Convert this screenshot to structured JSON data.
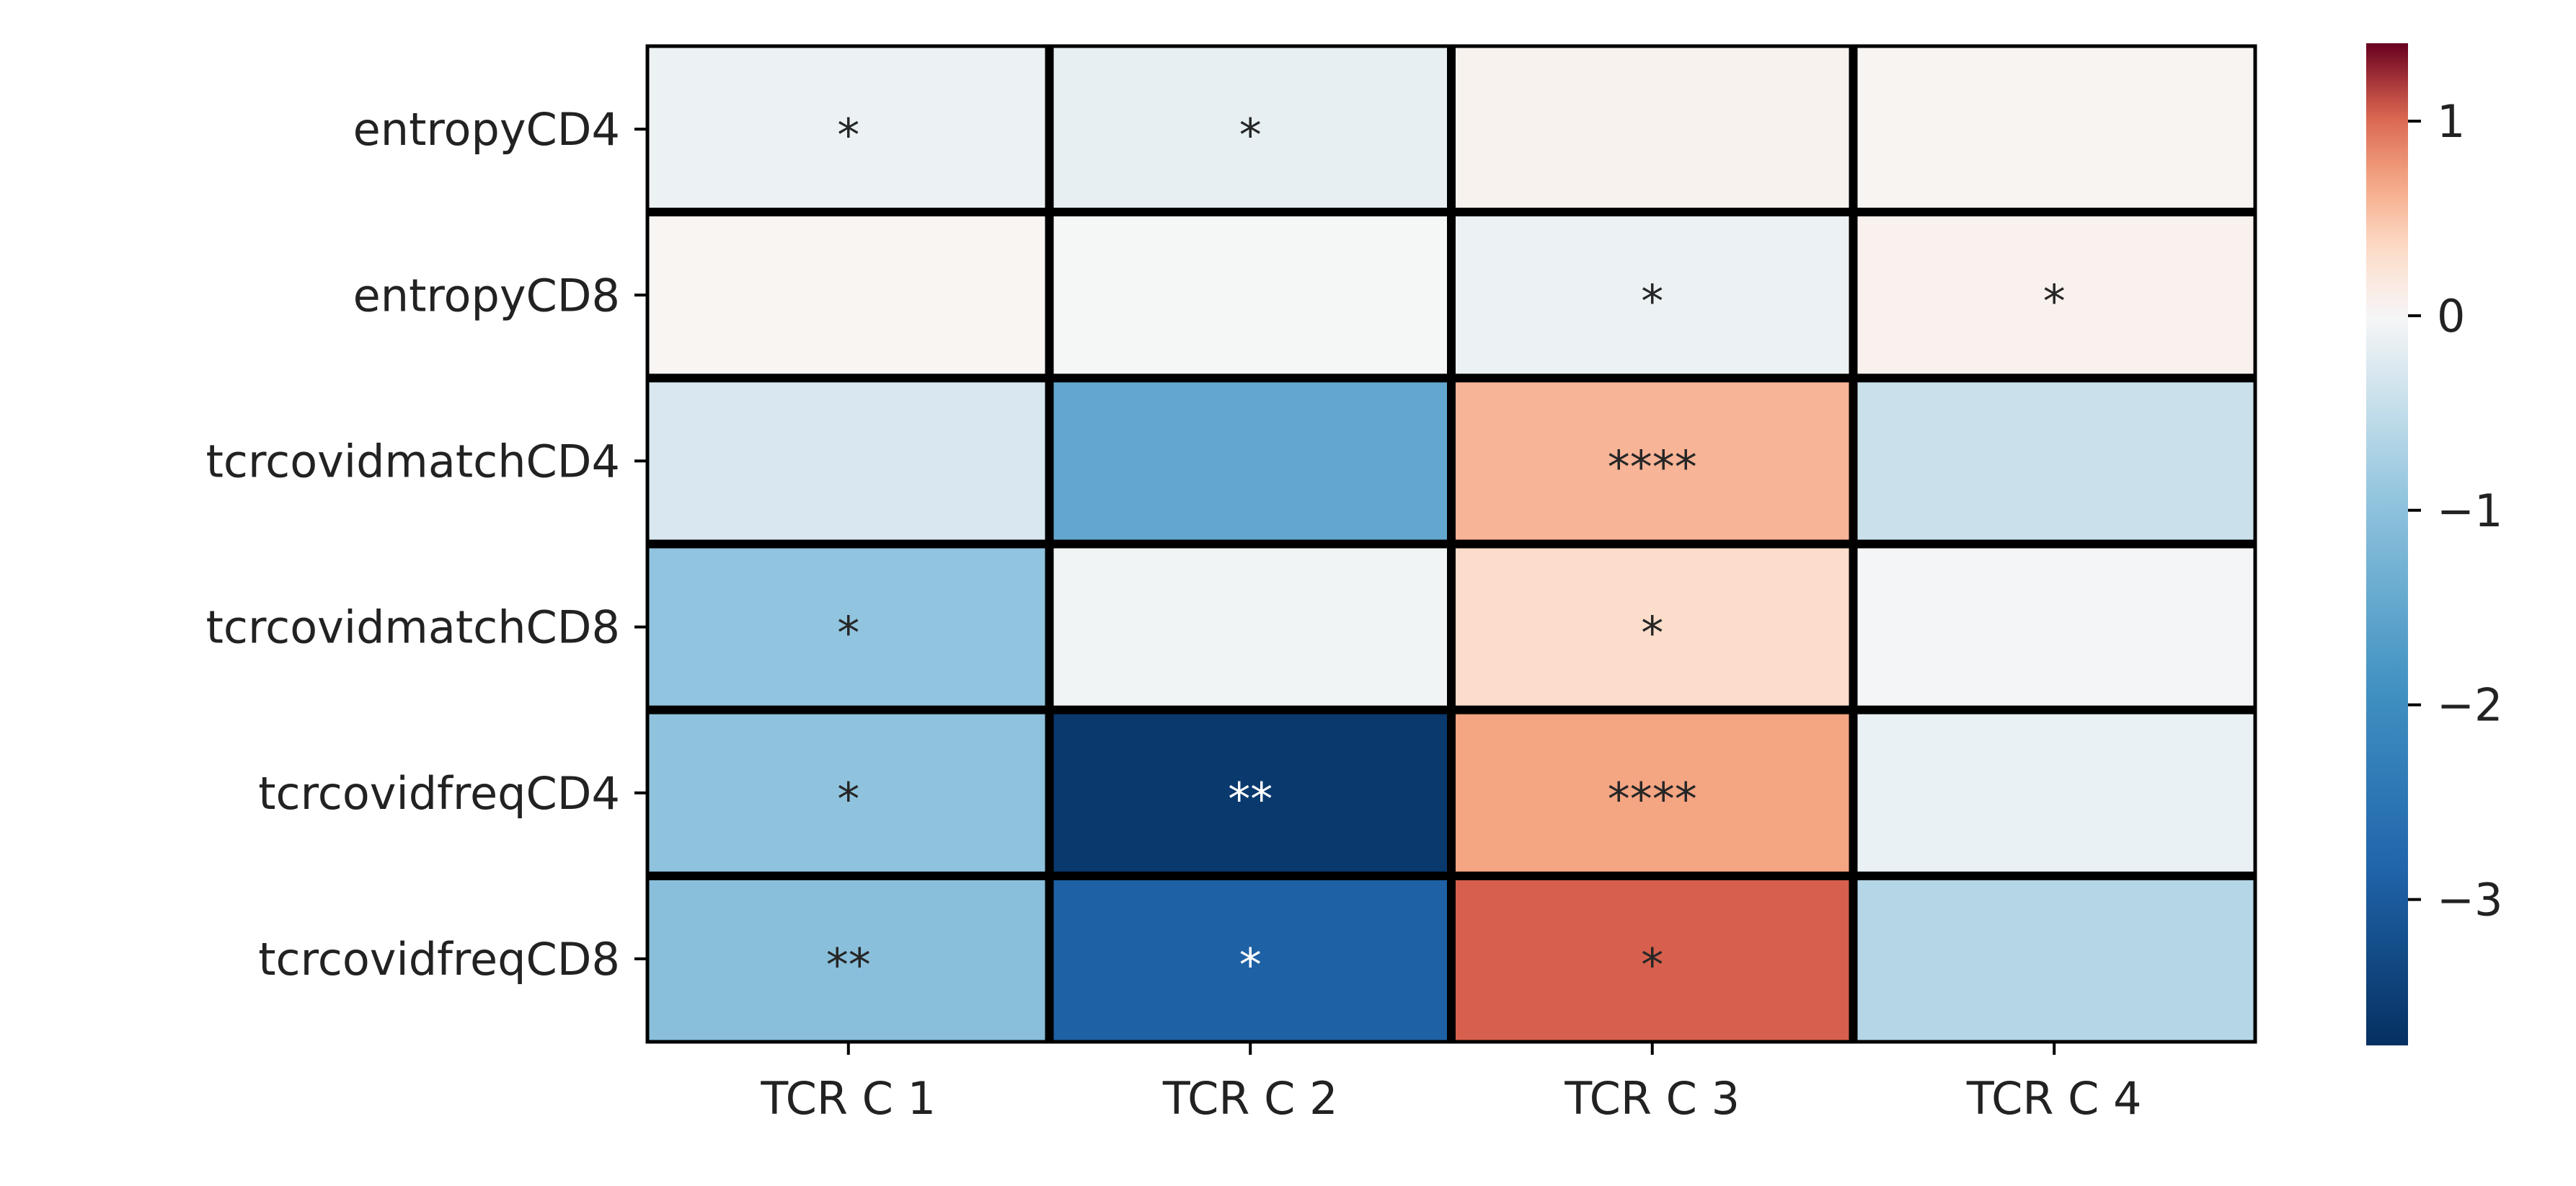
{
  "chart_data": {
    "type": "heatmap",
    "title": "",
    "xlabel": "",
    "ylabel": "",
    "columns": [
      "TCR C 1",
      "TCR C 2",
      "TCR C 3",
      "TCR C 4"
    ],
    "rows": [
      "entropyCD4",
      "entropyCD8",
      "tcrcovidmatchCD4",
      "tcrcovidmatchCD8",
      "tcrcovidfreqCD4",
      "tcrcovidfreqCD8"
    ],
    "values": [
      [
        -0.1,
        -0.15,
        0.06,
        0.04
      ],
      [
        0.03,
        -0.02,
        -0.1,
        0.07
      ],
      [
        -0.28,
        -1.5,
        0.6,
        -0.42
      ],
      [
        -0.95,
        -0.06,
        0.32,
        -0.04
      ],
      [
        -0.97,
        -3.6,
        0.7,
        -0.12
      ],
      [
        -1.05,
        -2.9,
        1.05,
        -0.62
      ]
    ],
    "annotations": [
      [
        "*",
        "*",
        "",
        ""
      ],
      [
        "",
        "",
        "*",
        "*"
      ],
      [
        "",
        "",
        "****",
        ""
      ],
      [
        "*",
        "",
        "*",
        ""
      ],
      [
        "*",
        "**",
        "****",
        ""
      ],
      [
        "**",
        "*",
        "*",
        ""
      ]
    ],
    "colorbar": {
      "colormap": "RdBu_r",
      "vmin": -3.75,
      "vmax": 1.4,
      "ticks": [
        1,
        0,
        -1,
        -2,
        -3
      ],
      "tick_labels": [
        "1",
        "0",
        "−1",
        "−2",
        "−3"
      ]
    },
    "colors": {
      "cell_border": "#000000",
      "text_dark": "#262626",
      "text_light": "#ffffff"
    }
  }
}
